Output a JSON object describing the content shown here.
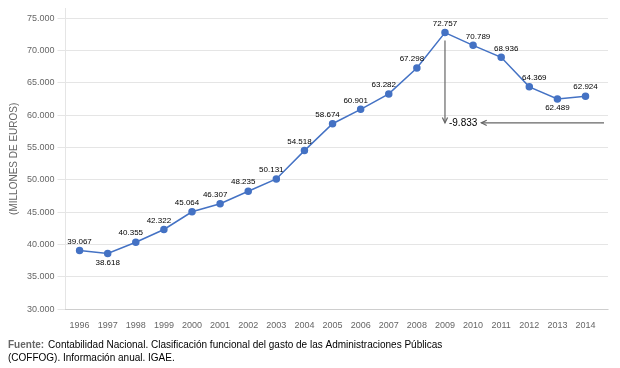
{
  "chart_data": {
    "type": "line",
    "x": [
      1996,
      1997,
      1998,
      1999,
      2000,
      2001,
      2002,
      2003,
      2004,
      2005,
      2006,
      2007,
      2008,
      2009,
      2010,
      2011,
      2012,
      2013,
      2014
    ],
    "values": [
      39067,
      38618,
      40355,
      42322,
      45064,
      46307,
      48235,
      50131,
      54518,
      58674,
      60901,
      63282,
      67298,
      72757,
      70789,
      68936,
      64369,
      62489,
      62924
    ],
    "value_labels": [
      "39.067",
      "38.618",
      "40.355",
      "42.322",
      "45.064",
      "46.307",
      "48.235",
      "50.131",
      "54.518",
      "58.674",
      "60.901",
      "63.282",
      "67.298",
      "72.757",
      "70.789",
      "68.936",
      "64.369",
      "62.489",
      "62.924"
    ],
    "data_labels": true,
    "color": "#4472C4",
    "marker": "circle",
    "xlim": [
      1995.5,
      2014.8
    ],
    "xticks": [
      1996,
      1997,
      1998,
      1999,
      2000,
      2001,
      2002,
      2003,
      2004,
      2005,
      2006,
      2007,
      2008,
      2009,
      2010,
      2011,
      2012,
      2013,
      2014
    ],
    "ylim": [
      30000,
      76500
    ],
    "yticks": [
      {
        "value": 30000,
        "label": "30.000"
      },
      {
        "value": 35000,
        "label": "35.000"
      },
      {
        "value": 40000,
        "label": "40.000"
      },
      {
        "value": 45000,
        "label": "45.000"
      },
      {
        "value": 50000,
        "label": "50.000"
      },
      {
        "value": 55000,
        "label": "55.000"
      },
      {
        "value": 60000,
        "label": "60.000"
      },
      {
        "value": 65000,
        "label": "65.000"
      },
      {
        "value": 70000,
        "label": "70.000"
      },
      {
        "value": 75000,
        "label": "75.000"
      }
    ],
    "ylabel": "(MILLONES DE EUROS)",
    "grid": "y",
    "annotation": "-9.833",
    "source_label": "Fuente:",
    "source": "Contabilidad Nacional. Clasificación funcional del gasto de las Administraciones Públicas\n(COFFOG). Información anual. IGAE."
  }
}
